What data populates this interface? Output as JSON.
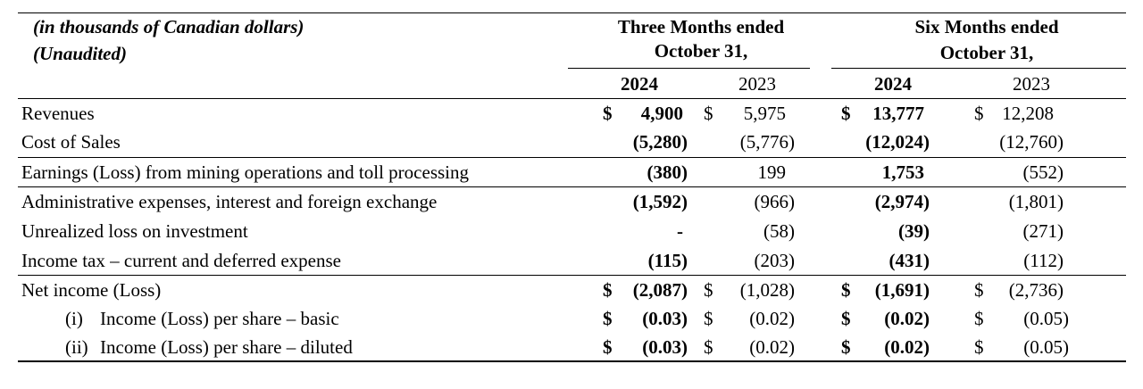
{
  "header": {
    "units_line1": "(in thousands of Canadian dollars)",
    "units_line2": "(Unaudited)",
    "three_months_line1": "Three Months ended",
    "three_months_line2": "October 31,",
    "six_months_line1": "Six Months ended",
    "six_months_line2": "October 31,",
    "year_3m_2024": "2024",
    "year_3m_2023": "2023",
    "year_6m_2024": "2024",
    "year_6m_2023": "2023"
  },
  "rows": [
    {
      "label": "Revenues",
      "q24_sym": "$",
      "q24": "4,900",
      "q23_sym": "$",
      "q23": "5,975",
      "s24_sym": "$",
      "s24": "13,777",
      "s23_sym": "$",
      "s23": "12,208"
    },
    {
      "label": "Cost of Sales",
      "q24": "(5,280)",
      "q23": "(5,776)",
      "s24": "(12,024)",
      "s23": "(12,760)"
    },
    {
      "label": "Earnings (Loss) from mining operations and toll processing",
      "q24": "(380)",
      "q23": "199",
      "s24": "1,753",
      "s23": "(552)"
    },
    {
      "label": "Administrative expenses, interest and foreign exchange",
      "q24": "(1,592)",
      "q23": "(966)",
      "s24": "(2,974)",
      "s23": "(1,801)"
    },
    {
      "label": "Unrealized loss on investment",
      "q24": "-",
      "q23": "(58)",
      "s24": "(39)",
      "s23": "(271)"
    },
    {
      "label": "Income tax – current and deferred expense",
      "q24": "(115)",
      "q23": "(203)",
      "s24": "(431)",
      "s23": "(112)"
    },
    {
      "label": "Net income (Loss)",
      "q24_sym": "$",
      "q24": "(2,087)",
      "q23_sym": "$",
      "q23": "(1,028)",
      "s24_sym": "$",
      "s24": "(1,691)",
      "s23_sym": "$",
      "s23": "(2,736)"
    },
    {
      "prefix": "(i)",
      "label": "Income (Loss) per share – basic",
      "q24_sym": "$",
      "q24": "(0.03)",
      "q23_sym": "$",
      "q23": "(0.02)",
      "s24_sym": "$",
      "s24": "(0.02)",
      "s23_sym": "$",
      "s23": "(0.05)"
    },
    {
      "prefix": "(ii)",
      "label": "Income (Loss) per share – diluted",
      "q24_sym": "$",
      "q24": "(0.03)",
      "q23_sym": "$",
      "q23": "(0.02)",
      "s24_sym": "$",
      "s24": "(0.02)",
      "s23_sym": "$",
      "s23": "(0.05)"
    }
  ]
}
